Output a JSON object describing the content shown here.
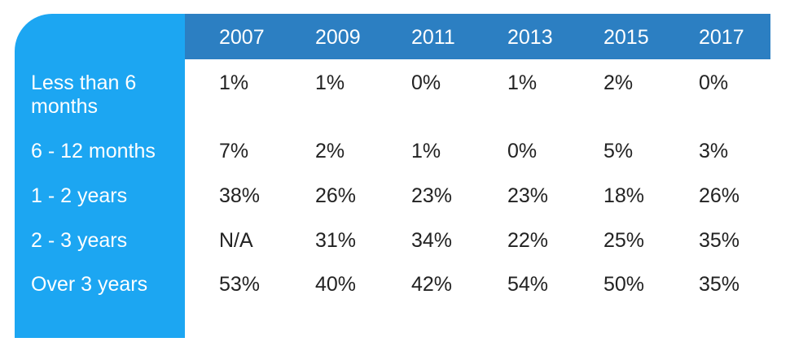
{
  "chart_data": {
    "type": "table",
    "columns": [
      "2007",
      "2009",
      "2011",
      "2013",
      "2015",
      "2017"
    ],
    "rows": [
      {
        "label": "Less than 6 months",
        "values": [
          "1%",
          "1%",
          "0%",
          "1%",
          "2%",
          "0%"
        ]
      },
      {
        "label": "6 - 12 months",
        "values": [
          "7%",
          "2%",
          "1%",
          "0%",
          "5%",
          "3%"
        ]
      },
      {
        "label": "1 - 2 years",
        "values": [
          "38%",
          "26%",
          "23%",
          "23%",
          "18%",
          "26%"
        ]
      },
      {
        "label": "2 - 3 years",
        "values": [
          "N/A",
          "31%",
          "34%",
          "22%",
          "25%",
          "35%"
        ]
      },
      {
        "label": "Over 3 years",
        "values": [
          "53%",
          "40%",
          "42%",
          "54%",
          "50%",
          "35%"
        ]
      }
    ]
  },
  "colors": {
    "side_panel": "#1ca6f2",
    "header_bar": "#2c7fc2",
    "header_text": "#ffffff",
    "cell_text": "#222222"
  }
}
